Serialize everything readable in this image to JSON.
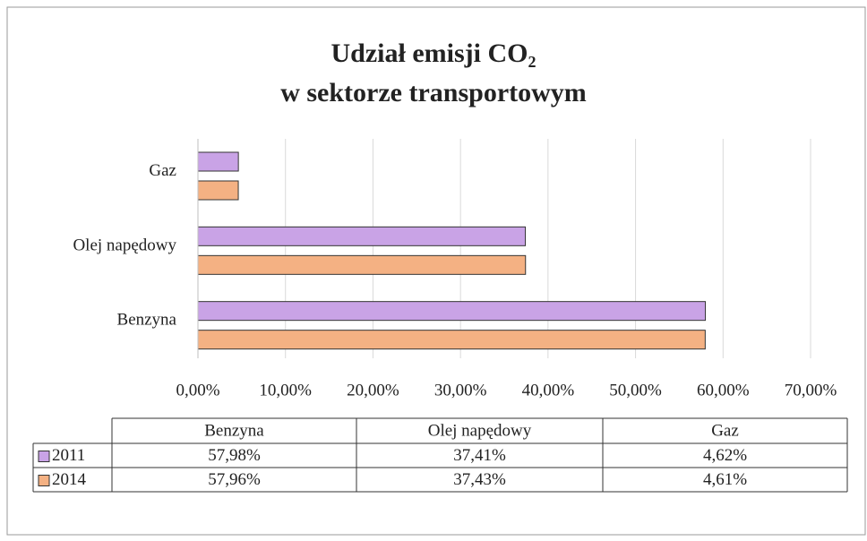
{
  "chart_data": {
    "type": "barh",
    "title": [
      "Udział emisji CO₂",
      "w sektorze transportowym"
    ],
    "categories": [
      "Benzyna",
      "Olej napędowy",
      "Gaz"
    ],
    "series": [
      {
        "name": "2011",
        "color": "#c9a3e6",
        "values": [
          57.98,
          37.41,
          4.62
        ],
        "value_labels": [
          "57,98%",
          "37,41%",
          "4,62%"
        ]
      },
      {
        "name": "2014",
        "color": "#f4b183",
        "values": [
          57.96,
          37.43,
          4.61
        ],
        "value_labels": [
          "57,96%",
          "37,43%",
          "4,61%"
        ]
      }
    ],
    "xlim": [
      0,
      70
    ],
    "xticks": [
      {
        "value": 0,
        "label": "0,00%"
      },
      {
        "value": 10,
        "label": "10,00%"
      },
      {
        "value": 20,
        "label": "20,00%"
      },
      {
        "value": 30,
        "label": "30,00%"
      },
      {
        "value": 40,
        "label": "40,00%"
      },
      {
        "value": 50,
        "label": "50,00%"
      },
      {
        "value": 60,
        "label": "60,00%"
      },
      {
        "value": 70,
        "label": "70,00%"
      }
    ],
    "grid": true,
    "data_table": true
  }
}
